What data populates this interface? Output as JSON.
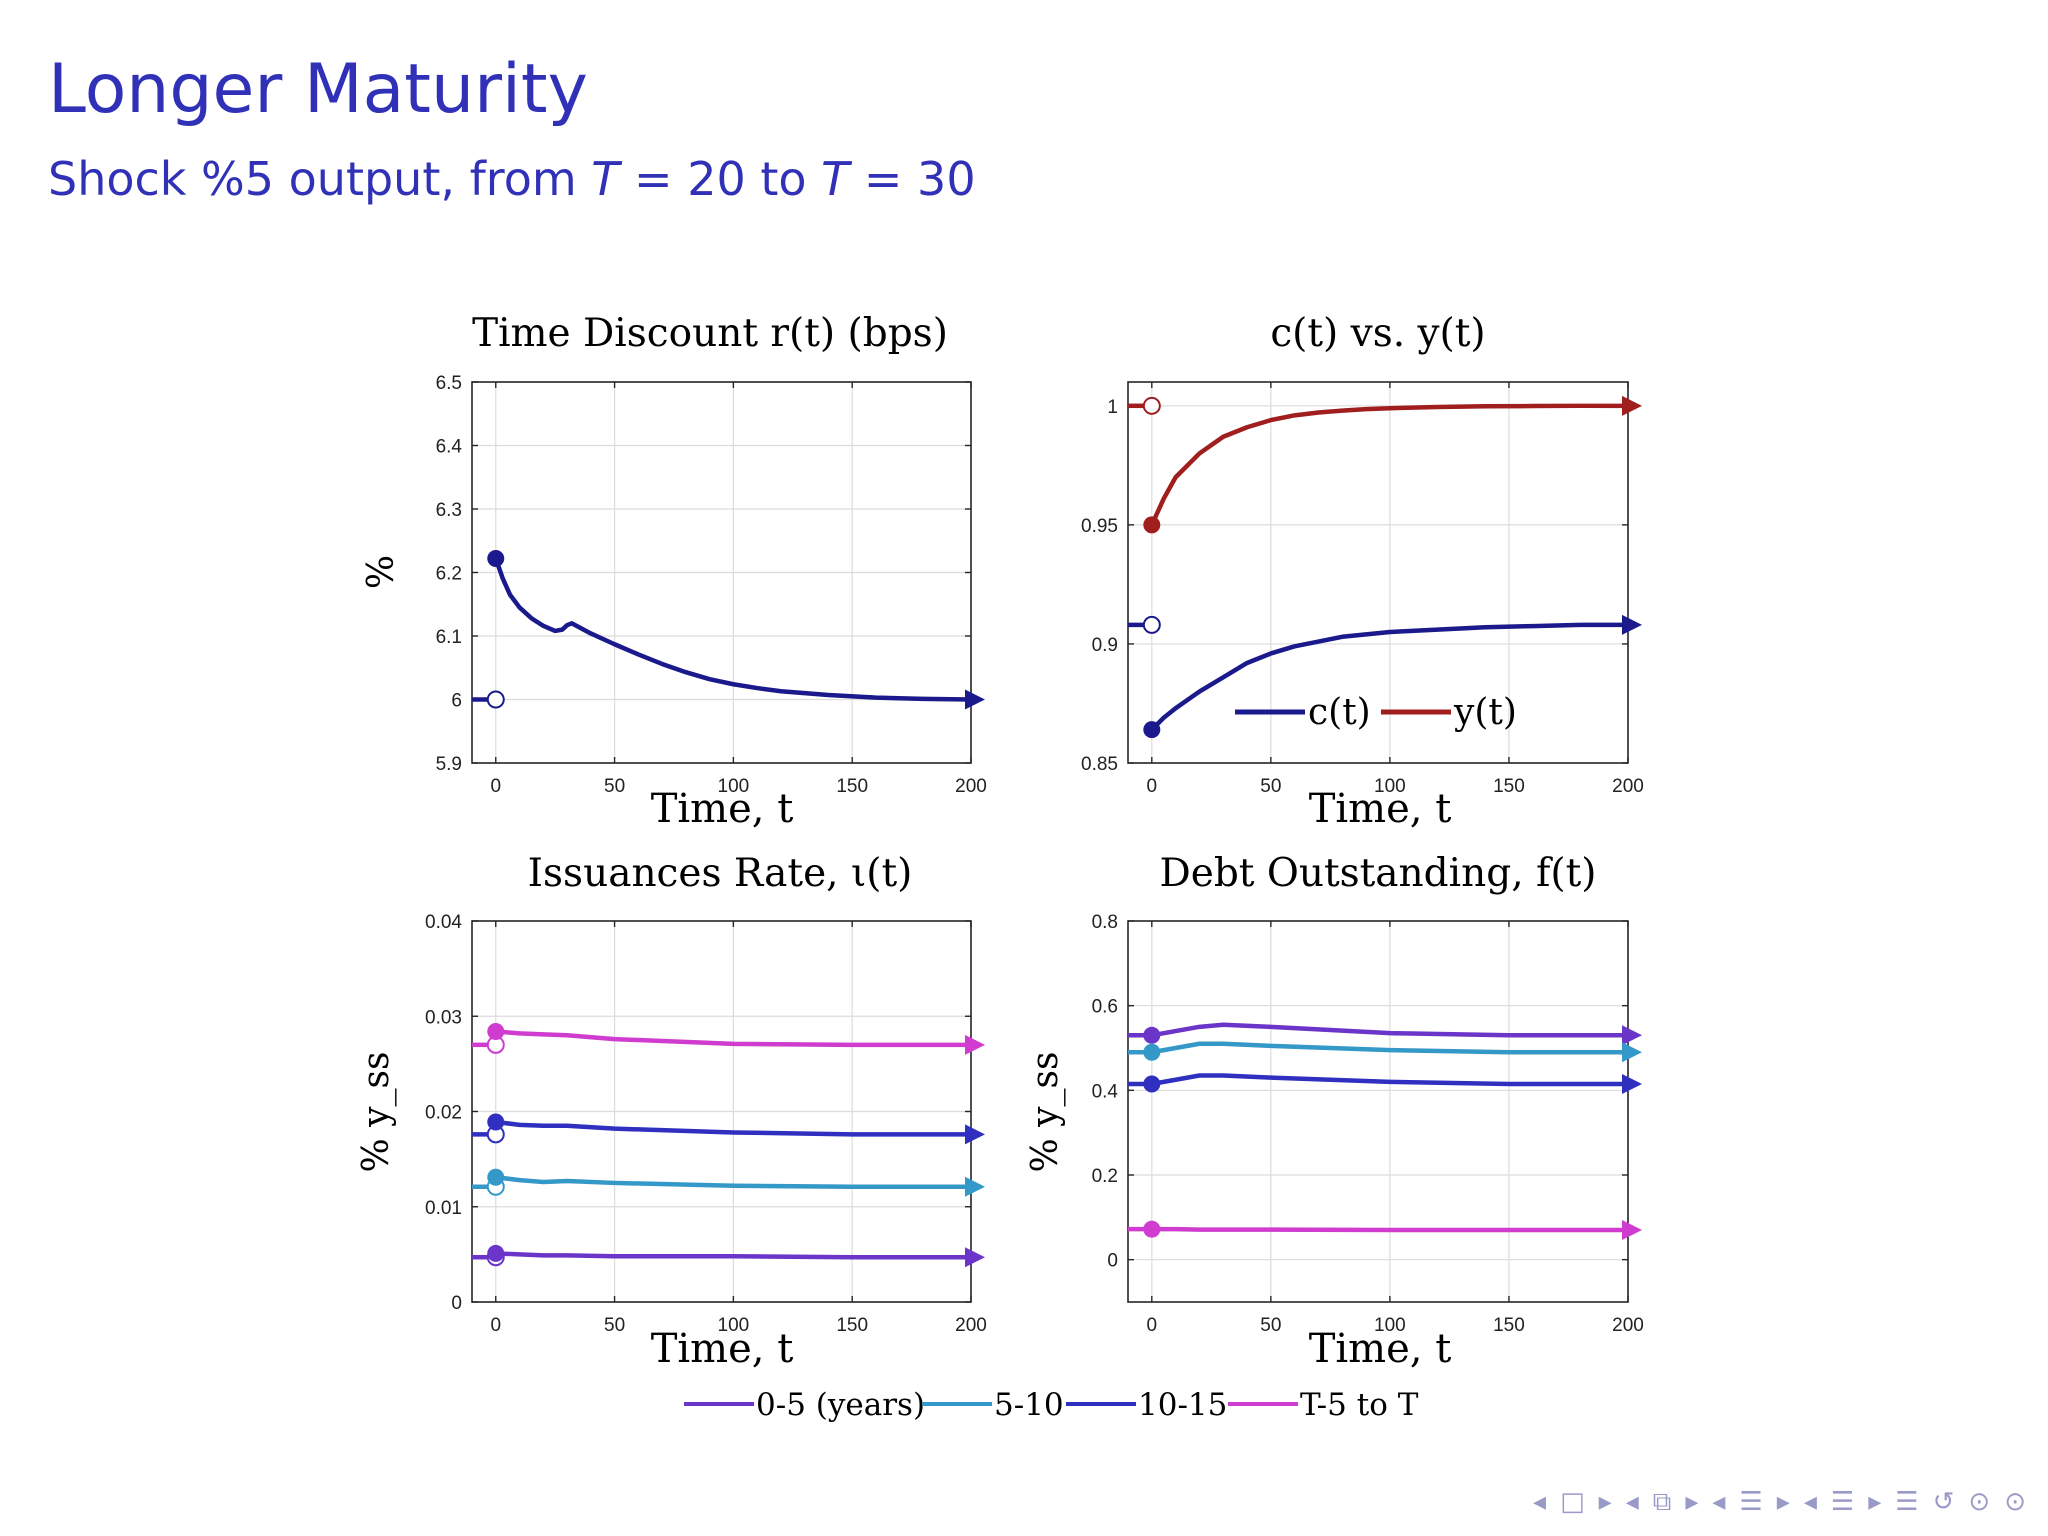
{
  "slide": {
    "title": "Longer Maturity",
    "subtitle_pre": "Shock %5 output, from ",
    "subtitle_T1": "T",
    "subtitle_mid1": " = 20 to ",
    "subtitle_T2": "T",
    "subtitle_mid2": " = 30"
  },
  "navigation": {
    "icons": [
      "nav-prev-frame-icon",
      "nav-frame-icon",
      "nav-next-frame-icon",
      "nav-prev-subsection-icon",
      "nav-subsection-icon",
      "nav-next-subsection-icon",
      "nav-prev-section-icon",
      "nav-section-icon",
      "nav-next-section-icon",
      "nav-prev-slide-icon",
      "nav-align-icon",
      "nav-next-slide-icon",
      "nav-toc-icon",
      "nav-back-icon",
      "nav-search-icon",
      "nav-zoom-icon"
    ],
    "glyphs": [
      "◂",
      "□",
      "▸",
      "◂",
      "⧉",
      "▸",
      "◂",
      "☰",
      "▸",
      "◂",
      "☰",
      "▸",
      "☰",
      "↺",
      "⊙",
      "⊙"
    ]
  },
  "colors": {
    "navy": "#1a1a8c",
    "red": "#a01e1e",
    "purple": "#6a35c8",
    "teal": "#3498c8",
    "blue": "#2f2fc0",
    "magenta": "#d03ccf",
    "title_blue": "#3131b8"
  },
  "chart_data": [
    {
      "type": "line",
      "title": "Time Discount r(t) (bps)",
      "xlabel": "Time, t",
      "ylabel": "%",
      "xlim": [
        -10,
        200
      ],
      "ylim": [
        5.9,
        6.5
      ],
      "xticks": [
        0,
        50,
        100,
        150,
        200
      ],
      "yticks": [
        5.9,
        6.0,
        6.1,
        6.2,
        6.3,
        6.4,
        6.5
      ],
      "yticklabels": [
        "5.9",
        "6",
        "6.1",
        "6.2",
        "6.3",
        "6.4",
        "6.5"
      ],
      "grid": true,
      "series": [
        {
          "color": "#1a1a8c",
          "initial_steady_state": 6.0,
          "x": [
            0,
            3,
            6,
            10,
            15,
            20,
            25,
            28,
            30,
            32,
            35,
            40,
            50,
            60,
            70,
            80,
            90,
            100,
            110,
            120,
            140,
            160,
            180,
            200
          ],
          "y": [
            6.222,
            6.19,
            6.165,
            6.145,
            6.128,
            6.116,
            6.108,
            6.11,
            6.117,
            6.12,
            6.114,
            6.104,
            6.087,
            6.071,
            6.056,
            6.043,
            6.032,
            6.024,
            6.018,
            6.013,
            6.007,
            6.003,
            6.001,
            6.0
          ]
        }
      ]
    },
    {
      "type": "line",
      "title": "c(t) vs. y(t)",
      "xlabel": "Time, t",
      "ylabel": "",
      "xlim": [
        -10,
        200
      ],
      "ylim": [
        0.85,
        1.01
      ],
      "xticks": [
        0,
        50,
        100,
        150,
        200
      ],
      "yticks": [
        0.85,
        0.9,
        0.95,
        1.0
      ],
      "yticklabels": [
        "0.85",
        "0.9",
        "0.95",
        "1"
      ],
      "grid": true,
      "legend": "inside-bottom-right",
      "series": [
        {
          "name": "c(t)",
          "color": "#1a1a8c",
          "initial_steady_state": 0.908,
          "x": [
            0,
            5,
            10,
            20,
            30,
            40,
            50,
            60,
            70,
            80,
            90,
            100,
            120,
            140,
            160,
            180,
            200
          ],
          "y": [
            0.864,
            0.869,
            0.873,
            0.88,
            0.886,
            0.892,
            0.896,
            0.899,
            0.901,
            0.903,
            0.904,
            0.905,
            0.906,
            0.907,
            0.9075,
            0.908,
            0.908
          ]
        },
        {
          "name": "y(t)",
          "color": "#a01e1e",
          "initial_steady_state": 1.0,
          "x": [
            0,
            5,
            10,
            20,
            30,
            40,
            50,
            60,
            70,
            80,
            90,
            100,
            120,
            140,
            160,
            180,
            200
          ],
          "y": [
            0.95,
            0.961,
            0.97,
            0.98,
            0.987,
            0.991,
            0.994,
            0.996,
            0.9972,
            0.998,
            0.9986,
            0.999,
            0.9995,
            0.9998,
            0.9999,
            1.0,
            1.0
          ]
        }
      ]
    },
    {
      "type": "line",
      "title": "Issuances Rate, ι(t)",
      "xlabel": "Time, t",
      "ylabel": "% y_ss",
      "xlim": [
        -10,
        200
      ],
      "ylim": [
        0,
        0.04
      ],
      "xticks": [
        0,
        50,
        100,
        150,
        200
      ],
      "yticks": [
        0,
        0.01,
        0.02,
        0.03,
        0.04
      ],
      "yticklabels": [
        "0",
        "0.01",
        "0.02",
        "0.03",
        "0.04"
      ],
      "grid": true,
      "series": [
        {
          "name": "0-5 (years)",
          "color": "#6a35c8",
          "initial_steady_state": 0.0047,
          "x": [
            0,
            10,
            20,
            30,
            50,
            100,
            150,
            200
          ],
          "y": [
            0.0051,
            0.005,
            0.0049,
            0.0049,
            0.0048,
            0.0048,
            0.0047,
            0.0047
          ]
        },
        {
          "name": "5-10",
          "color": "#3498c8",
          "initial_steady_state": 0.0121,
          "x": [
            0,
            10,
            20,
            30,
            50,
            100,
            150,
            200
          ],
          "y": [
            0.0131,
            0.0128,
            0.0126,
            0.0127,
            0.0125,
            0.0122,
            0.0121,
            0.0121
          ]
        },
        {
          "name": "10-15",
          "color": "#2f2fc0",
          "initial_steady_state": 0.0176,
          "x": [
            0,
            10,
            20,
            30,
            50,
            100,
            150,
            200
          ],
          "y": [
            0.0189,
            0.0186,
            0.0185,
            0.0185,
            0.0182,
            0.0178,
            0.0176,
            0.0176
          ]
        },
        {
          "name": "T-5 to T",
          "color": "#d03ccf",
          "initial_steady_state": 0.027,
          "x": [
            0,
            10,
            20,
            30,
            50,
            100,
            150,
            200
          ],
          "y": [
            0.0284,
            0.0282,
            0.0281,
            0.028,
            0.0276,
            0.0271,
            0.027,
            0.027
          ]
        }
      ]
    },
    {
      "type": "line",
      "title": "Debt Outstanding, f(t)",
      "xlabel": "Time, t",
      "ylabel": "% y_ss",
      "xlim": [
        -10,
        200
      ],
      "ylim": [
        -0.1,
        0.8
      ],
      "xticks": [
        0,
        50,
        100,
        150,
        200
      ],
      "yticks": [
        0,
        0.2,
        0.4,
        0.6,
        0.8
      ],
      "yticklabels": [
        "0",
        "0.2",
        "0.4",
        "0.6",
        "0.8"
      ],
      "grid": true,
      "legend": "bottom",
      "series": [
        {
          "name": "0-5 (years)",
          "color": "#6a35c8",
          "x": [
            0,
            10,
            20,
            30,
            50,
            100,
            150,
            200
          ],
          "y": [
            0.53,
            0.54,
            0.55,
            0.555,
            0.55,
            0.535,
            0.53,
            0.53
          ]
        },
        {
          "name": "5-10",
          "color": "#3498c8",
          "x": [
            0,
            10,
            20,
            30,
            50,
            100,
            150,
            200
          ],
          "y": [
            0.49,
            0.5,
            0.51,
            0.51,
            0.505,
            0.495,
            0.49,
            0.49
          ]
        },
        {
          "name": "10-15",
          "color": "#2f2fc0",
          "x": [
            0,
            10,
            20,
            30,
            50,
            100,
            150,
            200
          ],
          "y": [
            0.415,
            0.425,
            0.435,
            0.435,
            0.43,
            0.42,
            0.415,
            0.415
          ]
        },
        {
          "name": "T-5 to T",
          "color": "#d03ccf",
          "x": [
            0,
            10,
            20,
            30,
            50,
            100,
            150,
            200
          ],
          "y": [
            0.072,
            0.072,
            0.071,
            0.071,
            0.071,
            0.07,
            0.07,
            0.07
          ]
        }
      ]
    }
  ]
}
